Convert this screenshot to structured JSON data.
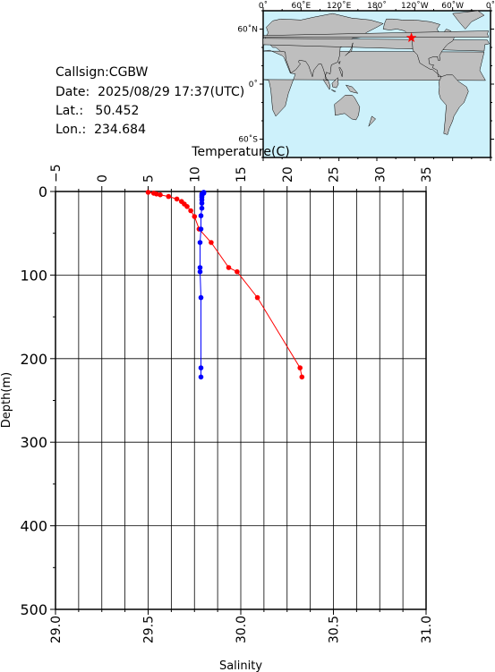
{
  "station": {
    "callsign_label": "Callsign:",
    "callsign": "CGBW",
    "date_label": "Date:",
    "date": "2025/08/29 17:37(UTC)",
    "lat_label": "Lat.:",
    "lat": "50.452",
    "lon_label": "Lon.:",
    "lon": "234.684"
  },
  "map": {
    "top_ticks": [
      "0˚",
      "60˚E",
      "120˚E",
      "180˚",
      "120˚W",
      "60˚W",
      "0˚"
    ],
    "left_ticks": [
      "60˚N",
      "0˚",
      "60˚S"
    ],
    "ocean_color": "#cdf1fb",
    "land_color": "#bebebe",
    "marker_color": "#ff0000",
    "marker_lon": 234.684,
    "marker_lat": 50.452
  },
  "chart_data": {
    "type": "line",
    "ylabel": "Depth(m)",
    "ylim": [
      0,
      500
    ],
    "yticks": [
      0,
      100,
      200,
      300,
      400,
      500
    ],
    "y_inverted": true,
    "grid": true,
    "top_axis": {
      "label": "Temperature(C)",
      "range": [
        -5,
        35
      ],
      "ticks": [
        -5,
        0,
        5,
        10,
        15,
        20,
        25,
        30,
        35
      ],
      "tick_labels": [
        "−5",
        "0",
        "5",
        "10",
        "15",
        "20",
        "25",
        "30",
        "35"
      ]
    },
    "bottom_axis": {
      "label": "Salinity",
      "range": [
        29.0,
        31.0
      ],
      "ticks": [
        29.0,
        29.5,
        30.0,
        30.5,
        31.0
      ],
      "tick_labels": [
        "29.0",
        "29.5",
        "30.0",
        "30.5",
        "31.0"
      ]
    },
    "series": [
      {
        "axis": "top",
        "color": "#ff0000",
        "depth": [
          1,
          2,
          3,
          4,
          6,
          9,
          12,
          15,
          18,
          23,
          30,
          45,
          61,
          91,
          96,
          127,
          211,
          222
        ],
        "values": [
          5.0,
          5.6,
          5.9,
          6.3,
          7.2,
          8.1,
          8.6,
          8.9,
          9.2,
          9.6,
          10.0,
          10.5,
          11.8,
          13.7,
          14.6,
          16.8,
          21.4,
          21.6
        ]
      },
      {
        "axis": "bottom",
        "color": "#0000ff",
        "depth": [
          1,
          2,
          3,
          5,
          7,
          10,
          14,
          20,
          29,
          45,
          61,
          91,
          96,
          127,
          211,
          222
        ],
        "values": [
          29.8,
          29.8,
          29.79,
          29.79,
          29.79,
          29.79,
          29.79,
          29.79,
          29.785,
          29.785,
          29.78,
          29.78,
          29.78,
          29.785,
          29.785,
          29.785
        ]
      }
    ]
  }
}
